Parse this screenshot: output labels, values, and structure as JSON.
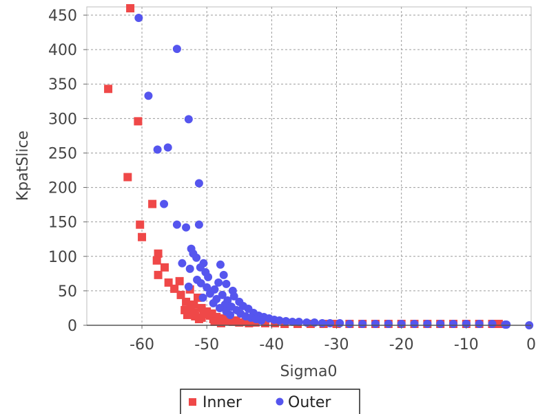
{
  "chart_data": {
    "type": "scatter",
    "xlabel": "Sigma0",
    "ylabel": "KpatSlice",
    "xlim": [
      -68.5,
      0
    ],
    "ylim": [
      0,
      462
    ],
    "xticks": [
      -60,
      -50,
      -40,
      -30,
      -20,
      -10,
      0
    ],
    "xtick_labels": [
      "-60",
      "-50",
      "-40",
      "-30",
      "-20",
      "-10",
      "0"
    ],
    "yticks": [
      0,
      50,
      100,
      150,
      200,
      250,
      300,
      350,
      400,
      450
    ],
    "ytick_labels": [
      "0",
      "50",
      "100",
      "150",
      "200",
      "250",
      "300",
      "350",
      "400",
      "450"
    ],
    "grid": true,
    "legend_position": "bottom-center",
    "series": [
      {
        "name": "Inner",
        "marker": "square",
        "color": "#ef4848",
        "points": [
          [
            -61.8,
            460
          ],
          [
            -65.2,
            343
          ],
          [
            -60.6,
            296
          ],
          [
            -62.2,
            215
          ],
          [
            -58.4,
            176
          ],
          [
            -60.3,
            146
          ],
          [
            -60.0,
            128
          ],
          [
            -57.5,
            104
          ],
          [
            -57.7,
            94
          ],
          [
            -56.5,
            84
          ],
          [
            -57.5,
            73
          ],
          [
            -54.2,
            64
          ],
          [
            -55.9,
            62
          ],
          [
            -55.0,
            53
          ],
          [
            -52.6,
            52
          ],
          [
            -51.4,
            40
          ],
          [
            -53.2,
            34
          ],
          [
            -54.0,
            44
          ],
          [
            -52.0,
            30
          ],
          [
            -50.8,
            25
          ],
          [
            -53.4,
            22
          ],
          [
            -52.0,
            18
          ],
          [
            -50.5,
            16
          ],
          [
            -49.5,
            14
          ],
          [
            -51.8,
            13
          ],
          [
            -48.5,
            12
          ],
          [
            -50.8,
            11
          ],
          [
            -47.5,
            10
          ],
          [
            -49.0,
            9
          ],
          [
            -46.5,
            8
          ],
          [
            -48.0,
            7
          ],
          [
            -45.5,
            7
          ],
          [
            -47.0,
            6
          ],
          [
            -44.0,
            5
          ],
          [
            -46.0,
            5
          ],
          [
            -42.5,
            4
          ],
          [
            -45.0,
            4
          ],
          [
            -41.0,
            3
          ],
          [
            -43.5,
            3
          ],
          [
            -39.5,
            3
          ],
          [
            -38.0,
            2
          ],
          [
            -36.0,
            2
          ],
          [
            -34.0,
            2
          ],
          [
            -32.0,
            2
          ],
          [
            -30.0,
            2
          ],
          [
            -28.0,
            2
          ],
          [
            -26.0,
            2
          ],
          [
            -24.0,
            2
          ],
          [
            -22.0,
            2
          ],
          [
            -20.0,
            2
          ],
          [
            -18.0,
            2
          ],
          [
            -16.0,
            2
          ],
          [
            -14.0,
            2
          ],
          [
            -12.0,
            2
          ],
          [
            -10.0,
            2
          ],
          [
            -8.0,
            2
          ],
          [
            -6.0,
            2
          ],
          [
            -5.0,
            2
          ],
          [
            -50.0,
            20
          ],
          [
            -49.2,
            17
          ],
          [
            -48.8,
            5
          ],
          [
            -47.8,
            3
          ],
          [
            -52.5,
            26
          ],
          [
            -53.0,
            15
          ],
          [
            -51.2,
            9
          ]
        ]
      },
      {
        "name": "Outer",
        "marker": "circle",
        "color": "#5555ee",
        "points": [
          [
            -60.5,
            446
          ],
          [
            -54.6,
            401
          ],
          [
            -59.0,
            333
          ],
          [
            -52.8,
            299
          ],
          [
            -57.6,
            255
          ],
          [
            -56.0,
            258
          ],
          [
            -51.2,
            206
          ],
          [
            -56.6,
            176
          ],
          [
            -54.6,
            146
          ],
          [
            -51.2,
            146
          ],
          [
            -53.2,
            142
          ],
          [
            -52.4,
            111
          ],
          [
            -52.1,
            104
          ],
          [
            -51.6,
            98
          ],
          [
            -53.8,
            90
          ],
          [
            -50.5,
            90
          ],
          [
            -47.9,
            88
          ],
          [
            -52.6,
            82
          ],
          [
            -51.0,
            84
          ],
          [
            -50.2,
            77
          ],
          [
            -47.4,
            73
          ],
          [
            -49.8,
            70
          ],
          [
            -51.5,
            66
          ],
          [
            -48.2,
            62
          ],
          [
            -47.0,
            60
          ],
          [
            -50.0,
            55
          ],
          [
            -48.8,
            52
          ],
          [
            -46.0,
            50
          ],
          [
            -49.5,
            46
          ],
          [
            -47.6,
            44
          ],
          [
            -45.8,
            42
          ],
          [
            -50.6,
            40
          ],
          [
            -48.5,
            38
          ],
          [
            -46.8,
            36
          ],
          [
            -45.0,
            34
          ],
          [
            -49.0,
            32
          ],
          [
            -47.2,
            30
          ],
          [
            -44.4,
            28
          ],
          [
            -46.2,
            27
          ],
          [
            -48.0,
            25
          ],
          [
            -43.6,
            24
          ],
          [
            -45.4,
            22
          ],
          [
            -47.0,
            20
          ],
          [
            -42.8,
            18
          ],
          [
            -44.8,
            17
          ],
          [
            -46.4,
            15
          ],
          [
            -42.0,
            14
          ],
          [
            -44.0,
            13
          ],
          [
            -41.2,
            12
          ],
          [
            -43.2,
            11
          ],
          [
            -40.4,
            10
          ],
          [
            -42.4,
            9
          ],
          [
            -39.6,
            8
          ],
          [
            -41.6,
            7
          ],
          [
            -38.8,
            7
          ],
          [
            -37.8,
            6
          ],
          [
            -36.8,
            5
          ],
          [
            -35.8,
            5
          ],
          [
            -34.6,
            4
          ],
          [
            -33.4,
            4
          ],
          [
            -32.2,
            3
          ],
          [
            -31.0,
            3
          ],
          [
            -29.5,
            3
          ],
          [
            -28.0,
            2
          ],
          [
            -26.0,
            2
          ],
          [
            -24.0,
            2
          ],
          [
            -22.0,
            2
          ],
          [
            -20.0,
            2
          ],
          [
            -18.0,
            2
          ],
          [
            -16.0,
            2
          ],
          [
            -14.0,
            2
          ],
          [
            -12.0,
            2
          ],
          [
            -10.0,
            2
          ],
          [
            -8.0,
            2
          ],
          [
            -6.0,
            2
          ],
          [
            -4.0,
            1
          ],
          [
            -3.8,
            1
          ],
          [
            -0.3,
            0
          ],
          [
            -52.8,
            56
          ],
          [
            -50.9,
            61
          ]
        ]
      }
    ]
  }
}
